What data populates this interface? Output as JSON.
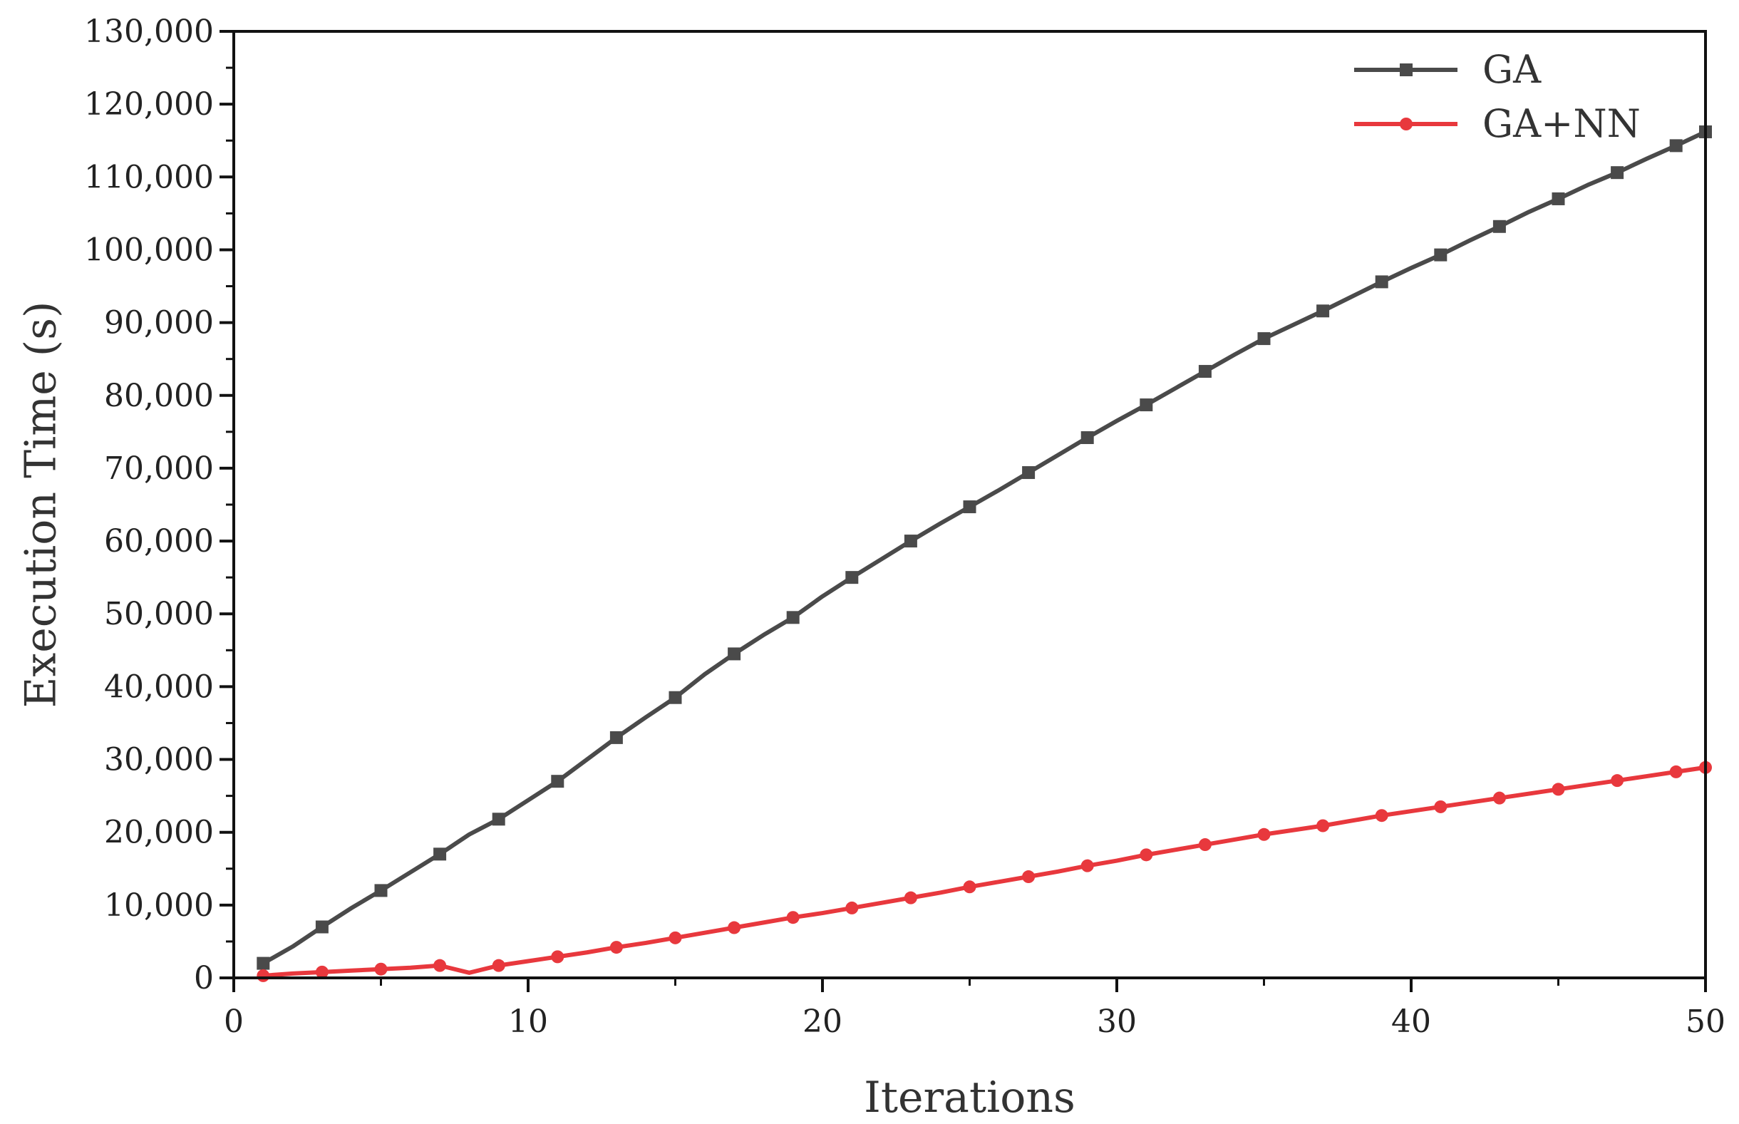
{
  "chart_data": {
    "type": "line",
    "title": "",
    "xlabel": "Iterations",
    "ylabel": "Execution Time (s)",
    "xlim": [
      0,
      50
    ],
    "ylim": [
      0,
      130000
    ],
    "x_ticks": [
      0,
      10,
      20,
      30,
      40,
      50
    ],
    "x_tick_labels": [
      "0",
      "10",
      "20",
      "30",
      "40",
      "50"
    ],
    "y_ticks": [
      0,
      10000,
      20000,
      30000,
      40000,
      50000,
      60000,
      70000,
      80000,
      90000,
      100000,
      110000,
      120000,
      130000
    ],
    "y_tick_labels": [
      "0",
      "10,000",
      "20,000",
      "30,000",
      "40,000",
      "50,000",
      "60,000",
      "70,000",
      "80,000",
      "90,000",
      "100,000",
      "110,000",
      "120,000",
      "130,000"
    ],
    "grid": false,
    "legend_position": "top-right",
    "x": [
      1,
      2,
      3,
      4,
      5,
      6,
      7,
      8,
      9,
      10,
      11,
      12,
      13,
      14,
      15,
      16,
      17,
      18,
      19,
      20,
      21,
      22,
      23,
      24,
      25,
      26,
      27,
      28,
      29,
      30,
      31,
      32,
      33,
      34,
      35,
      36,
      37,
      38,
      39,
      40,
      41,
      42,
      43,
      44,
      45,
      46,
      47,
      48,
      49,
      50
    ],
    "series": [
      {
        "name": "GA",
        "color": "#4a4a4a",
        "marker": "square",
        "values": [
          2000,
          4300,
          7000,
          9600,
          12000,
          14500,
          17000,
          19700,
          21800,
          24400,
          27000,
          30000,
          33000,
          35800,
          38500,
          41700,
          44500,
          47100,
          49500,
          52400,
          55000,
          57500,
          60000,
          62400,
          64700,
          67000,
          69400,
          71800,
          74200,
          76500,
          78700,
          81000,
          83300,
          85600,
          87800,
          89700,
          91600,
          93600,
          95600,
          97500,
          99300,
          101300,
          103200,
          105200,
          107000,
          108900,
          110600,
          112500,
          114300,
          116200
        ]
      },
      {
        "name": "GA+NN",
        "color": "#e8383d",
        "marker": "circle",
        "values": [
          300,
          600,
          800,
          1000,
          1200,
          1400,
          1700,
          700,
          1700,
          2300,
          2900,
          3500,
          4200,
          4800,
          5500,
          6200,
          6900,
          7600,
          8300,
          8900,
          9600,
          10300,
          11000,
          11700,
          12500,
          13200,
          13900,
          14600,
          15400,
          16100,
          16900,
          17600,
          18300,
          19000,
          19700,
          20300,
          20900,
          21600,
          22300,
          22900,
          23500,
          24100,
          24700,
          25300,
          25900,
          26500,
          27100,
          27700,
          28300,
          28900
        ]
      }
    ]
  }
}
